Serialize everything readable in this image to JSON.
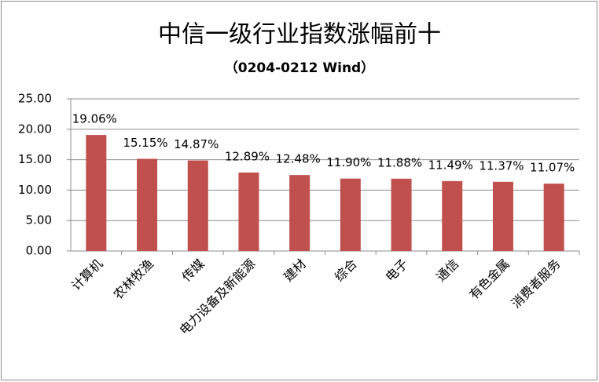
{
  "chart_data": {
    "type": "bar",
    "title": "中信一级行业指数涨幅前十",
    "subtitle": "（0204-0212  Wind）",
    "categories": [
      "计算机",
      "农林牧渔",
      "传媒",
      "电力设备及新能源",
      "建材",
      "综合",
      "电子",
      "通信",
      "有色金属",
      "消费者服务"
    ],
    "values": [
      19.06,
      15.15,
      14.87,
      12.89,
      12.48,
      11.9,
      11.88,
      11.49,
      11.37,
      11.07
    ],
    "value_labels": [
      "19.06%",
      "15.15%",
      "14.87%",
      "12.89%",
      "12.48%",
      "11.90%",
      "11.88%",
      "11.49%",
      "11.37%",
      "11.07%"
    ],
    "color": "#c0504d",
    "ylim": [
      0,
      25
    ],
    "yticks": [
      {
        "value": 0,
        "label": "0.00"
      },
      {
        "value": 5,
        "label": "5.00"
      },
      {
        "value": 10,
        "label": "10.00"
      },
      {
        "value": 15,
        "label": "15.00"
      },
      {
        "value": 20,
        "label": "20.00"
      },
      {
        "value": 25,
        "label": "25.00"
      }
    ],
    "grid": true
  }
}
